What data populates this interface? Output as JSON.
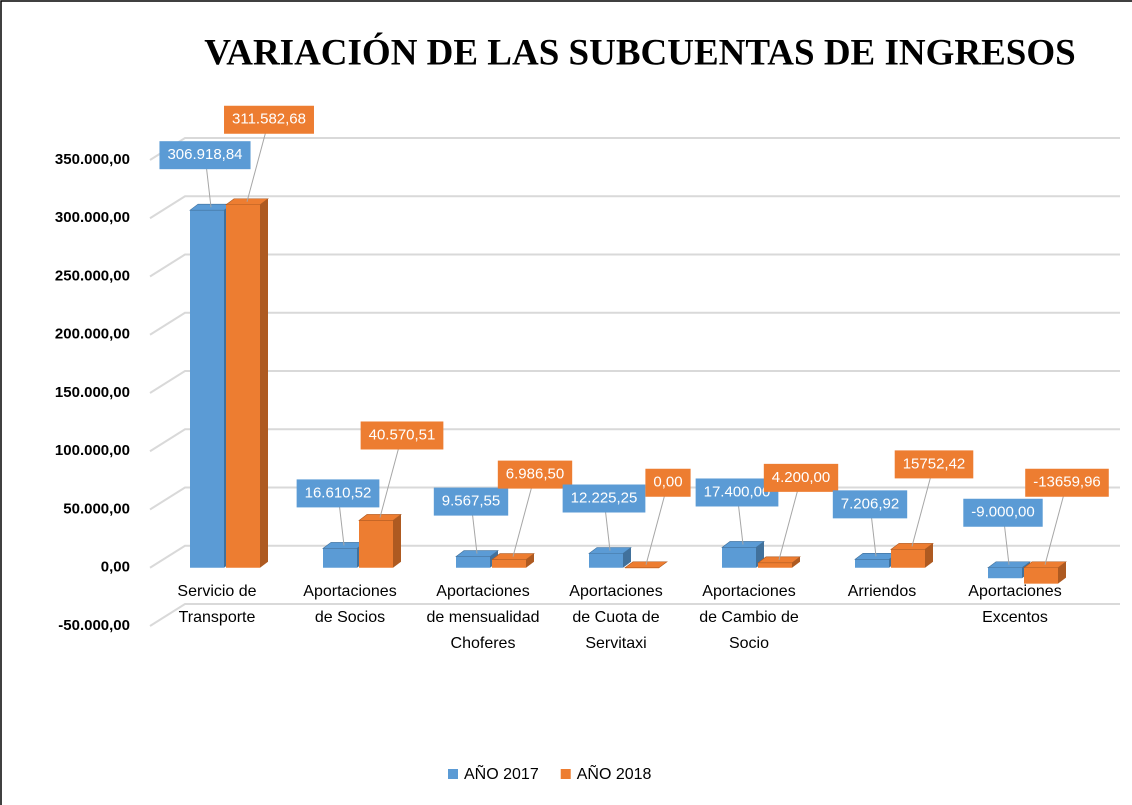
{
  "chart_data": {
    "type": "bar3d",
    "title": "VARIACIÓN DE LAS SUBCUENTAS DE INGRESOS",
    "categories": [
      "Servicio de Transporte",
      "Aportaciones de Socios",
      "Aportaciones de mensualidad Choferes",
      "Aportaciones de Cuota de Servitaxi",
      "Aportaciones de Cambio de Socio",
      "Arriendos",
      "Aportaciones Excentos"
    ],
    "series": [
      {
        "name": "AÑO 2017",
        "color": "#5b9bd5",
        "side_color": "#41719c",
        "values": [
          306918.84,
          16610.52,
          9567.55,
          12225.25,
          17400.0,
          7206.92,
          -9000.0
        ],
        "value_labels": [
          "306.918,84",
          "16.610,52",
          "9.567,55",
          "12.225,25",
          "17.400,00",
          "7.206,92",
          "-9.000,00"
        ]
      },
      {
        "name": "AÑO 2018",
        "color": "#ed7d31",
        "side_color": "#ae5a21",
        "values": [
          311582.68,
          40570.51,
          6986.5,
          0,
          4200.0,
          15752.42,
          -13659.96
        ],
        "value_labels": [
          "311.582,68",
          "40.570,51",
          "6.986,50",
          "0,00",
          "4.200,00",
          "15752,42",
          "-13659,96"
        ]
      }
    ],
    "ylim": [
      -50000,
      350000
    ],
    "yticks": [
      {
        "value": -50000,
        "label": "-50.000,00"
      },
      {
        "value": 0,
        "label": "0,00"
      },
      {
        "value": 50000,
        "label": "50.000,00"
      },
      {
        "value": 100000,
        "label": "100.000,00"
      },
      {
        "value": 150000,
        "label": "150.000,00"
      },
      {
        "value": 200000,
        "label": "200.000,00"
      },
      {
        "value": 250000,
        "label": "250.000,00"
      },
      {
        "value": 300000,
        "label": "300.000,00"
      },
      {
        "value": 350000,
        "label": "350.000,00"
      }
    ],
    "grid": true,
    "legend": "bottom"
  }
}
